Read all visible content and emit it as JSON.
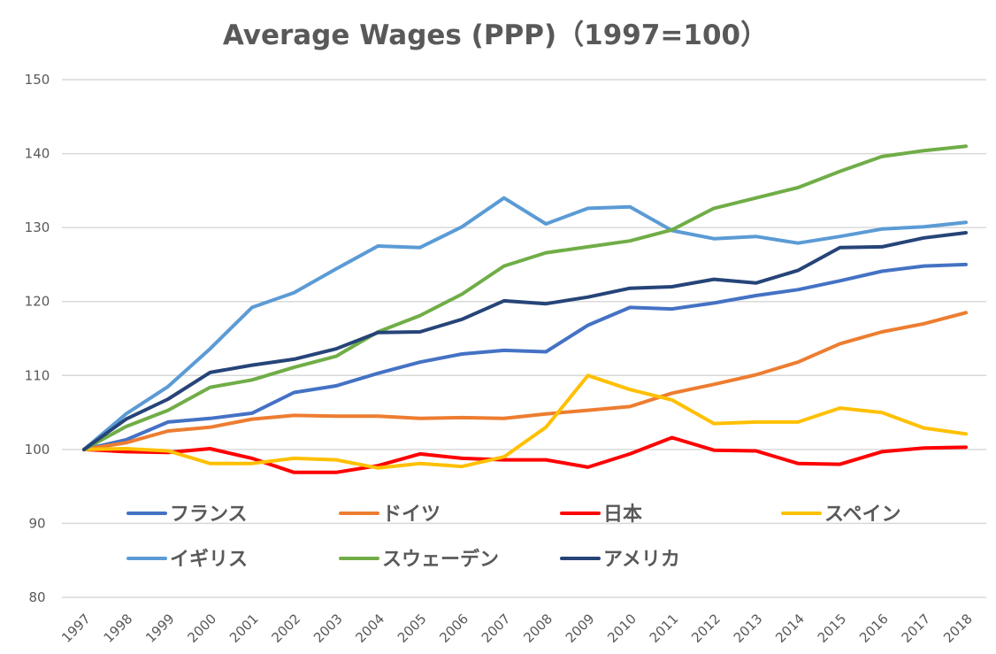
{
  "chart_data": {
    "type": "line",
    "title": "Average Wages (PPP)（1997=100）",
    "xlabel": "",
    "ylabel": "",
    "ylim": [
      80,
      150
    ],
    "yticks": [
      "80",
      "90",
      "100",
      "110",
      "120",
      "130",
      "140",
      "150"
    ],
    "grid": true,
    "legend_position": "bottom-inside",
    "x": [
      "1997",
      "1998",
      "1999",
      "2000",
      "2001",
      "2002",
      "2003",
      "2004",
      "2005",
      "2006",
      "2007",
      "2008",
      "2009",
      "2010",
      "2011",
      "2012",
      "2013",
      "2014",
      "2015",
      "2016",
      "2017",
      "2018"
    ],
    "series": [
      {
        "name": "フランス",
        "color": "#4472C4",
        "values": [
          100,
          101.3,
          103.7,
          104.2,
          104.9,
          107.7,
          108.6,
          110.3,
          111.8,
          112.9,
          113.4,
          113.2,
          116.8,
          119.2,
          119.0,
          119.8,
          120.8,
          121.6,
          122.8,
          124.1,
          124.8,
          125.0
        ]
      },
      {
        "name": "ドイツ",
        "color": "#ED7D31",
        "values": [
          100,
          100.9,
          102.5,
          103.0,
          104.1,
          104.6,
          104.5,
          104.5,
          104.2,
          104.3,
          104.2,
          104.8,
          105.3,
          105.8,
          107.6,
          108.8,
          110.1,
          111.8,
          114.3,
          115.9,
          117.0,
          118.5
        ]
      },
      {
        "name": "日本",
        "color": "#FF0000",
        "values": [
          100,
          99.7,
          99.6,
          100.1,
          98.8,
          96.9,
          96.9,
          97.8,
          99.4,
          98.8,
          98.6,
          98.6,
          97.6,
          99.4,
          101.6,
          99.9,
          99.8,
          98.1,
          98.0,
          99.7,
          100.2,
          100.3
        ]
      },
      {
        "name": "スペイン",
        "color": "#FFC000",
        "values": [
          100,
          100.1,
          99.8,
          98.1,
          98.1,
          98.8,
          98.6,
          97.5,
          98.1,
          97.7,
          99.0,
          103.0,
          110.0,
          108.1,
          106.7,
          103.5,
          103.7,
          103.7,
          105.6,
          105.0,
          102.9,
          102.1
        ]
      },
      {
        "name": "イギリス",
        "color": "#5B9BD5",
        "values": [
          100,
          104.8,
          108.5,
          113.6,
          119.2,
          121.2,
          124.4,
          127.5,
          127.3,
          130.1,
          134.0,
          130.5,
          132.6,
          132.8,
          129.6,
          128.5,
          128.8,
          127.9,
          128.8,
          129.8,
          130.1,
          130.7
        ]
      },
      {
        "name": "スウェーデン",
        "color": "#70AD47",
        "values": [
          100,
          103.1,
          105.3,
          108.4,
          109.4,
          111.1,
          112.6,
          115.9,
          118.1,
          121.0,
          124.8,
          126.6,
          127.4,
          128.2,
          129.7,
          132.6,
          134.0,
          135.4,
          137.6,
          139.6,
          140.4,
          141.0
        ]
      },
      {
        "name": "アメリカ",
        "color": "#264478",
        "values": [
          100,
          104.1,
          106.8,
          110.4,
          111.4,
          112.2,
          113.6,
          115.8,
          115.9,
          117.6,
          120.1,
          119.7,
          120.6,
          121.8,
          122.0,
          123.0,
          122.5,
          124.2,
          127.3,
          127.4,
          128.6,
          129.3
        ]
      }
    ]
  }
}
